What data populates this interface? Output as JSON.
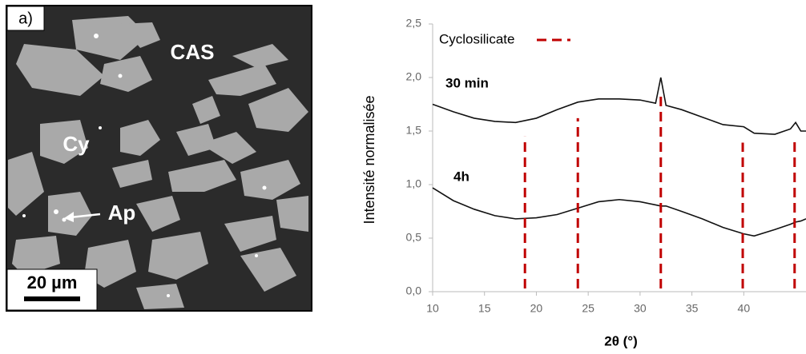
{
  "image_panel": {
    "panel_label": "a)",
    "labels": [
      "CAS",
      "Cy",
      "Ap"
    ],
    "scale_bar": "20 µm"
  },
  "chart_data": {
    "type": "line",
    "x_label": "2θ (°)",
    "y_label": "Intensité normalisée",
    "x": [
      10,
      12,
      14,
      16,
      18,
      20,
      22,
      24,
      26,
      28,
      30,
      31.5,
      32,
      32.5,
      34,
      36,
      38,
      40,
      41,
      43,
      44.5,
      45,
      45.5,
      46
    ],
    "series": [
      {
        "name": "30 min",
        "color": "#111111",
        "values": [
          1.75,
          1.68,
          1.62,
          1.59,
          1.58,
          1.62,
          1.7,
          1.77,
          1.8,
          1.8,
          1.79,
          1.76,
          2.0,
          1.74,
          1.7,
          1.63,
          1.56,
          1.54,
          1.48,
          1.47,
          1.52,
          1.58,
          1.5,
          1.5
        ]
      },
      {
        "name": "4h",
        "color": "#111111",
        "values": [
          0.97,
          0.85,
          0.77,
          0.71,
          0.68,
          0.69,
          0.72,
          0.78,
          0.84,
          0.86,
          0.84,
          0.81,
          0.8,
          0.8,
          0.75,
          0.68,
          0.6,
          0.54,
          0.52,
          0.58,
          0.63,
          0.65,
          0.66,
          0.68
        ]
      }
    ],
    "reference_lines": {
      "name": "Cyclosilicate",
      "color": "#c00000",
      "x": [
        18.9,
        24,
        32,
        39.9,
        44.9
      ]
    },
    "xlim": [
      10,
      46
    ],
    "ylim": [
      0,
      2.5
    ],
    "xticks": [
      10,
      15,
      20,
      25,
      30,
      35,
      40
    ],
    "yticks": [
      {
        "value": 0,
        "label": "0,0"
      },
      {
        "value": 0.5,
        "label": "0,5"
      },
      {
        "value": 1,
        "label": "1,0"
      },
      {
        "value": 1.5,
        "label": "1,5"
      },
      {
        "value": 2,
        "label": "2,0"
      },
      {
        "value": 2.5,
        "label": "2,5"
      }
    ],
    "grid": false,
    "legend": "top-left"
  }
}
